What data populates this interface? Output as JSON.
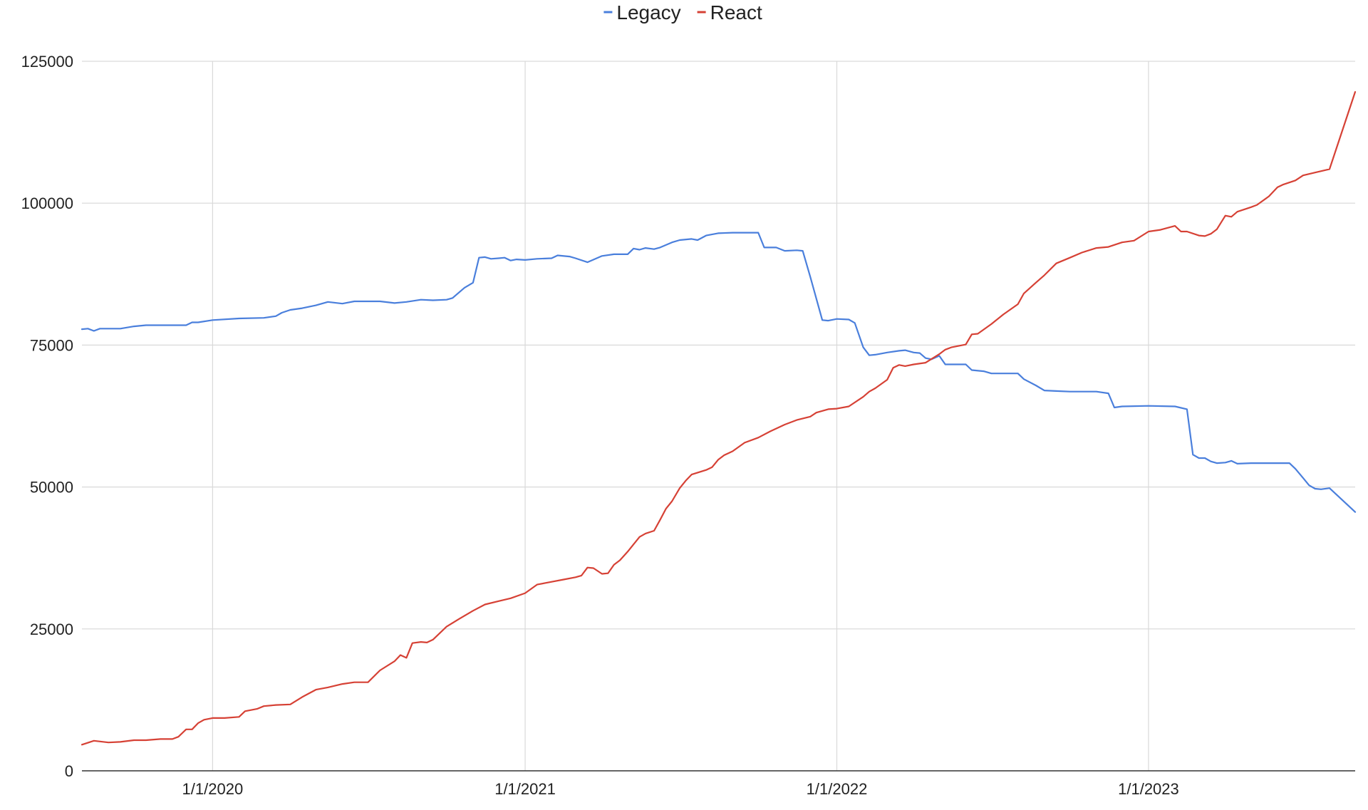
{
  "chart_data": {
    "type": "line",
    "title": "",
    "xlabel": "",
    "ylabel": "",
    "grid": true,
    "legend_position": "top-center",
    "x_start": "2019-08-01",
    "x_end": "2023-08-31",
    "xlim": [
      "2019-08-01",
      "2023-08-31"
    ],
    "ylim": [
      0,
      125000
    ],
    "y_ticks": [
      0,
      25000,
      50000,
      75000,
      100000,
      125000
    ],
    "y_tick_labels": [
      "0",
      "25000",
      "50000",
      "75000",
      "100000",
      "125000"
    ],
    "x_ticks": [
      "2020-01-01",
      "2021-01-01",
      "2022-01-01",
      "2023-01-01"
    ],
    "x_tick_labels": [
      "1/1/2020",
      "1/1/2021",
      "1/1/2022",
      "1/1/2023"
    ],
    "series": [
      {
        "name": "Legacy",
        "color": "#4a7fdc",
        "points": [
          [
            "2019-08-01",
            77800
          ],
          [
            "2019-08-08",
            77900
          ],
          [
            "2019-08-15",
            77500
          ],
          [
            "2019-08-22",
            77900
          ],
          [
            "2019-09-01",
            77900
          ],
          [
            "2019-09-15",
            77900
          ],
          [
            "2019-10-01",
            78300
          ],
          [
            "2019-10-15",
            78500
          ],
          [
            "2019-11-01",
            78500
          ],
          [
            "2019-11-15",
            78500
          ],
          [
            "2019-12-01",
            78500
          ],
          [
            "2019-12-08",
            79000
          ],
          [
            "2019-12-15",
            79000
          ],
          [
            "2020-01-01",
            79400
          ],
          [
            "2020-02-01",
            79700
          ],
          [
            "2020-03-01",
            79800
          ],
          [
            "2020-03-15",
            80100
          ],
          [
            "2020-03-22",
            80700
          ],
          [
            "2020-04-01",
            81200
          ],
          [
            "2020-04-15",
            81500
          ],
          [
            "2020-05-01",
            82000
          ],
          [
            "2020-05-15",
            82600
          ],
          [
            "2020-06-01",
            82300
          ],
          [
            "2020-06-15",
            82700
          ],
          [
            "2020-07-15",
            82700
          ],
          [
            "2020-08-01",
            82400
          ],
          [
            "2020-08-15",
            82600
          ],
          [
            "2020-09-01",
            83000
          ],
          [
            "2020-09-15",
            82900
          ],
          [
            "2020-10-01",
            83000
          ],
          [
            "2020-10-08",
            83300
          ],
          [
            "2020-10-22",
            85100
          ],
          [
            "2020-11-01",
            86000
          ],
          [
            "2020-11-08",
            90400
          ],
          [
            "2020-11-15",
            90500
          ],
          [
            "2020-11-22",
            90200
          ],
          [
            "2020-12-01",
            90300
          ],
          [
            "2020-12-08",
            90400
          ],
          [
            "2020-12-15",
            89900
          ],
          [
            "2020-12-22",
            90100
          ],
          [
            "2021-01-01",
            90000
          ],
          [
            "2021-01-15",
            90200
          ],
          [
            "2021-02-01",
            90300
          ],
          [
            "2021-02-08",
            90800
          ],
          [
            "2021-02-22",
            90600
          ],
          [
            "2021-03-01",
            90300
          ],
          [
            "2021-03-15",
            89600
          ],
          [
            "2021-04-01",
            90700
          ],
          [
            "2021-04-15",
            91000
          ],
          [
            "2021-05-01",
            91000
          ],
          [
            "2021-05-08",
            92000
          ],
          [
            "2021-05-15",
            91800
          ],
          [
            "2021-05-22",
            92100
          ],
          [
            "2021-06-01",
            91900
          ],
          [
            "2021-06-08",
            92200
          ],
          [
            "2021-06-22",
            93100
          ],
          [
            "2021-07-01",
            93500
          ],
          [
            "2021-07-15",
            93700
          ],
          [
            "2021-07-22",
            93500
          ],
          [
            "2021-08-01",
            94300
          ],
          [
            "2021-08-15",
            94700
          ],
          [
            "2021-09-01",
            94800
          ],
          [
            "2021-09-15",
            94800
          ],
          [
            "2021-10-01",
            94800
          ],
          [
            "2021-10-08",
            92200
          ],
          [
            "2021-10-22",
            92200
          ],
          [
            "2021-11-01",
            91600
          ],
          [
            "2021-11-15",
            91700
          ],
          [
            "2021-11-22",
            91600
          ],
          [
            "2021-12-01",
            87000
          ],
          [
            "2021-12-15",
            79400
          ],
          [
            "2021-12-22",
            79300
          ],
          [
            "2022-01-01",
            79600
          ],
          [
            "2022-01-15",
            79500
          ],
          [
            "2022-01-22",
            78900
          ],
          [
            "2022-02-01",
            74600
          ],
          [
            "2022-02-08",
            73200
          ],
          [
            "2022-02-15",
            73300
          ],
          [
            "2022-03-01",
            73700
          ],
          [
            "2022-03-15",
            74000
          ],
          [
            "2022-03-22",
            74100
          ],
          [
            "2022-04-01",
            73700
          ],
          [
            "2022-04-08",
            73600
          ],
          [
            "2022-04-15",
            72700
          ],
          [
            "2022-04-22",
            72500
          ],
          [
            "2022-05-01",
            73100
          ],
          [
            "2022-05-08",
            71600
          ],
          [
            "2022-05-15",
            71600
          ],
          [
            "2022-06-01",
            71600
          ],
          [
            "2022-06-08",
            70600
          ],
          [
            "2022-06-22",
            70400
          ],
          [
            "2022-07-01",
            70000
          ],
          [
            "2022-07-15",
            70000
          ],
          [
            "2022-08-01",
            70000
          ],
          [
            "2022-08-08",
            69000
          ],
          [
            "2022-08-22",
            67900
          ],
          [
            "2022-09-01",
            67000
          ],
          [
            "2022-09-15",
            66900
          ],
          [
            "2022-10-01",
            66800
          ],
          [
            "2022-10-15",
            66800
          ],
          [
            "2022-11-01",
            66800
          ],
          [
            "2022-11-15",
            66500
          ],
          [
            "2022-11-22",
            64000
          ],
          [
            "2022-12-01",
            64200
          ],
          [
            "2023-01-01",
            64300
          ],
          [
            "2023-02-01",
            64200
          ],
          [
            "2023-02-15",
            63700
          ],
          [
            "2023-02-22",
            55700
          ],
          [
            "2023-03-01",
            55100
          ],
          [
            "2023-03-08",
            55100
          ],
          [
            "2023-03-15",
            54500
          ],
          [
            "2023-03-22",
            54200
          ],
          [
            "2023-04-01",
            54300
          ],
          [
            "2023-04-08",
            54600
          ],
          [
            "2023-04-15",
            54100
          ],
          [
            "2023-05-01",
            54200
          ],
          [
            "2023-05-15",
            54200
          ],
          [
            "2023-06-01",
            54200
          ],
          [
            "2023-06-15",
            54200
          ],
          [
            "2023-06-22",
            53200
          ],
          [
            "2023-07-01",
            51600
          ],
          [
            "2023-07-08",
            50300
          ],
          [
            "2023-07-15",
            49700
          ],
          [
            "2023-07-22",
            49600
          ],
          [
            "2023-08-01",
            49800
          ],
          [
            "2023-08-31",
            45600
          ]
        ]
      },
      {
        "name": "React",
        "color": "#d64135",
        "points": [
          [
            "2019-08-01",
            4600
          ],
          [
            "2019-08-15",
            5300
          ],
          [
            "2019-09-01",
            5000
          ],
          [
            "2019-09-15",
            5100
          ],
          [
            "2019-10-01",
            5400
          ],
          [
            "2019-10-15",
            5400
          ],
          [
            "2019-11-01",
            5600
          ],
          [
            "2019-11-15",
            5600
          ],
          [
            "2019-11-22",
            6000
          ],
          [
            "2019-12-01",
            7300
          ],
          [
            "2019-12-08",
            7300
          ],
          [
            "2019-12-15",
            8400
          ],
          [
            "2019-12-22",
            9000
          ],
          [
            "2020-01-01",
            9300
          ],
          [
            "2020-01-15",
            9300
          ],
          [
            "2020-02-01",
            9500
          ],
          [
            "2020-02-08",
            10500
          ],
          [
            "2020-02-22",
            10900
          ],
          [
            "2020-03-01",
            11400
          ],
          [
            "2020-03-15",
            11600
          ],
          [
            "2020-04-01",
            11700
          ],
          [
            "2020-04-15",
            13000
          ],
          [
            "2020-05-01",
            14300
          ],
          [
            "2020-05-15",
            14700
          ],
          [
            "2020-06-01",
            15300
          ],
          [
            "2020-06-15",
            15600
          ],
          [
            "2020-07-01",
            15600
          ],
          [
            "2020-07-15",
            17700
          ],
          [
            "2020-08-01",
            19300
          ],
          [
            "2020-08-08",
            20400
          ],
          [
            "2020-08-15",
            19900
          ],
          [
            "2020-08-22",
            22500
          ],
          [
            "2020-09-01",
            22700
          ],
          [
            "2020-09-08",
            22600
          ],
          [
            "2020-09-15",
            23100
          ],
          [
            "2020-10-01",
            25400
          ],
          [
            "2020-10-15",
            26700
          ],
          [
            "2020-11-01",
            28200
          ],
          [
            "2020-11-15",
            29300
          ],
          [
            "2020-12-01",
            29900
          ],
          [
            "2020-12-15",
            30400
          ],
          [
            "2021-01-01",
            31300
          ],
          [
            "2021-01-15",
            32800
          ],
          [
            "2021-02-01",
            33300
          ],
          [
            "2021-02-15",
            33700
          ],
          [
            "2021-03-01",
            34100
          ],
          [
            "2021-03-08",
            34400
          ],
          [
            "2021-03-15",
            35800
          ],
          [
            "2021-03-22",
            35700
          ],
          [
            "2021-04-01",
            34700
          ],
          [
            "2021-04-08",
            34800
          ],
          [
            "2021-04-15",
            36300
          ],
          [
            "2021-04-22",
            37100
          ],
          [
            "2021-05-01",
            38600
          ],
          [
            "2021-05-08",
            39900
          ],
          [
            "2021-05-15",
            41200
          ],
          [
            "2021-05-22",
            41800
          ],
          [
            "2021-06-01",
            42300
          ],
          [
            "2021-06-08",
            44200
          ],
          [
            "2021-06-15",
            46200
          ],
          [
            "2021-06-22",
            47500
          ],
          [
            "2021-07-01",
            49800
          ],
          [
            "2021-07-08",
            51100
          ],
          [
            "2021-07-15",
            52200
          ],
          [
            "2021-08-01",
            53000
          ],
          [
            "2021-08-08",
            53500
          ],
          [
            "2021-08-15",
            54800
          ],
          [
            "2021-08-22",
            55600
          ],
          [
            "2021-09-01",
            56300
          ],
          [
            "2021-09-15",
            57800
          ],
          [
            "2021-10-01",
            58700
          ],
          [
            "2021-10-15",
            59800
          ],
          [
            "2021-11-01",
            61000
          ],
          [
            "2021-11-15",
            61800
          ],
          [
            "2021-12-01",
            62400
          ],
          [
            "2021-12-08",
            63100
          ],
          [
            "2021-12-22",
            63700
          ],
          [
            "2022-01-01",
            63800
          ],
          [
            "2022-01-15",
            64200
          ],
          [
            "2022-02-01",
            65900
          ],
          [
            "2022-02-08",
            66800
          ],
          [
            "2022-02-15",
            67400
          ],
          [
            "2022-03-01",
            68900
          ],
          [
            "2022-03-08",
            71000
          ],
          [
            "2022-03-15",
            71500
          ],
          [
            "2022-03-22",
            71300
          ],
          [
            "2022-04-01",
            71600
          ],
          [
            "2022-04-15",
            71900
          ],
          [
            "2022-05-01",
            73400
          ],
          [
            "2022-05-08",
            74200
          ],
          [
            "2022-05-15",
            74600
          ],
          [
            "2022-06-01",
            75100
          ],
          [
            "2022-06-08",
            76900
          ],
          [
            "2022-06-15",
            77000
          ],
          [
            "2022-07-01",
            78700
          ],
          [
            "2022-07-15",
            80400
          ],
          [
            "2022-08-01",
            82200
          ],
          [
            "2022-08-08",
            84100
          ],
          [
            "2022-08-22",
            86000
          ],
          [
            "2022-09-01",
            87300
          ],
          [
            "2022-09-15",
            89400
          ],
          [
            "2022-10-01",
            90400
          ],
          [
            "2022-10-15",
            91300
          ],
          [
            "2022-11-01",
            92100
          ],
          [
            "2022-11-15",
            92300
          ],
          [
            "2022-12-01",
            93100
          ],
          [
            "2022-12-15",
            93400
          ],
          [
            "2023-01-01",
            95000
          ],
          [
            "2023-01-15",
            95300
          ],
          [
            "2023-02-01",
            96000
          ],
          [
            "2023-02-08",
            95000
          ],
          [
            "2023-02-15",
            95000
          ],
          [
            "2023-03-01",
            94300
          ],
          [
            "2023-03-08",
            94200
          ],
          [
            "2023-03-15",
            94600
          ],
          [
            "2023-03-22",
            95400
          ],
          [
            "2023-04-01",
            97800
          ],
          [
            "2023-04-08",
            97600
          ],
          [
            "2023-04-15",
            98500
          ],
          [
            "2023-05-01",
            99300
          ],
          [
            "2023-05-08",
            99700
          ],
          [
            "2023-05-22",
            101200
          ],
          [
            "2023-06-01",
            102800
          ],
          [
            "2023-06-08",
            103300
          ],
          [
            "2023-06-22",
            104000
          ],
          [
            "2023-07-01",
            104900
          ],
          [
            "2023-07-15",
            105400
          ],
          [
            "2023-08-01",
            106000
          ],
          [
            "2023-08-31",
            119600
          ]
        ]
      }
    ]
  }
}
